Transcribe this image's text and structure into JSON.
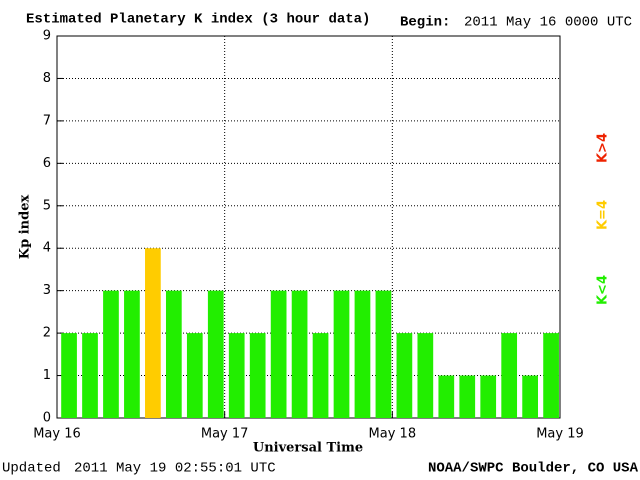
{
  "chart_data": {
    "type": "bar",
    "title": "Estimated Planetary K index (3 hour data)",
    "begin_label": "Begin:",
    "begin_value": "2011 May 16 0000 UTC",
    "ylabel": "Kp index",
    "xlabel": "Universal Time",
    "updated_label": "Updated",
    "updated_value": "2011 May 19 02:55:01 UTC",
    "source": "NOAA/SWPC Boulder, CO USA",
    "values": [
      2,
      2,
      3,
      3,
      4,
      3,
      2,
      3,
      2,
      2,
      3,
      3,
      2,
      3,
      3,
      3,
      2,
      2,
      1,
      1,
      1,
      2,
      1,
      2
    ],
    "colors": [
      "#22ee00",
      "#22ee00",
      "#22ee00",
      "#22ee00",
      "#ffcc00",
      "#22ee00",
      "#22ee00",
      "#22ee00",
      "#22ee00",
      "#22ee00",
      "#22ee00",
      "#22ee00",
      "#22ee00",
      "#22ee00",
      "#22ee00",
      "#22ee00",
      "#22ee00",
      "#22ee00",
      "#22ee00",
      "#22ee00",
      "#22ee00",
      "#22ee00",
      "#22ee00",
      "#22ee00"
    ],
    "legend": [
      {
        "label": "K<4",
        "color": "#22ee00"
      },
      {
        "label": "K=4",
        "color": "#ffcc00"
      },
      {
        "label": "K>4",
        "color": "#ee2200"
      }
    ],
    "xlim": [
      0,
      3
    ],
    "xticks": [
      {
        "value": 0,
        "label": "May 16"
      },
      {
        "value": 1,
        "label": "May 17"
      },
      {
        "value": 2,
        "label": "May 18"
      },
      {
        "value": 3,
        "label": "May 19"
      }
    ],
    "ylim": [
      0,
      9
    ],
    "yticks": [
      0,
      1,
      2,
      3,
      4,
      5,
      6,
      7,
      8,
      9
    ],
    "grid": true
  }
}
